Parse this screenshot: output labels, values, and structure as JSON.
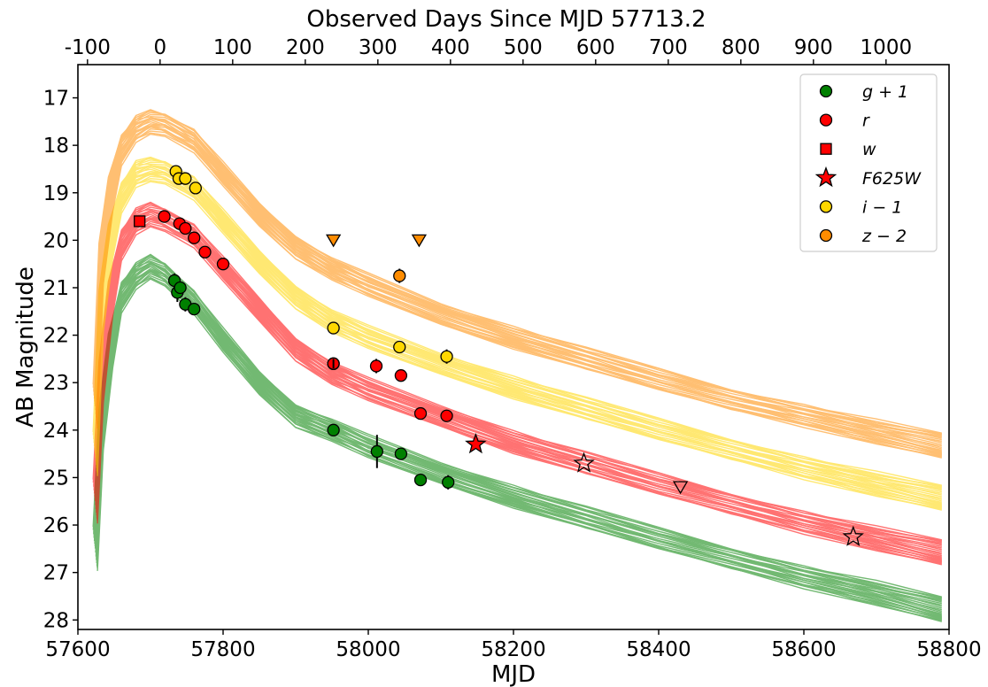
{
  "chart_data": {
    "type": "scatter",
    "title": "",
    "xlabel": "MJD",
    "ylabel": "AB Magnitude",
    "top_xlabel": "Observed Days Since MJD 57713.2",
    "x_range": [
      57600,
      58800
    ],
    "y_range": [
      28.2,
      16.3
    ],
    "y_inverted": true,
    "top_axis_offset": 57713.2,
    "x_ticks": [
      57600,
      57800,
      58000,
      58200,
      58400,
      58600,
      58800
    ],
    "x_tick_labels": [
      "57600",
      "57800",
      "58000",
      "58200",
      "58400",
      "58600",
      "58800"
    ],
    "y_ticks": [
      17,
      18,
      19,
      20,
      21,
      22,
      23,
      24,
      25,
      26,
      27,
      28
    ],
    "y_tick_labels": [
      "17",
      "18",
      "19",
      "20",
      "21",
      "22",
      "23",
      "24",
      "25",
      "26",
      "27",
      "28"
    ],
    "top_ticks": [
      -100,
      0,
      100,
      200,
      300,
      400,
      500,
      600,
      700,
      800,
      900,
      1000
    ],
    "top_tick_labels": [
      "-100",
      "0",
      "100",
      "200",
      "300",
      "400",
      "500",
      "600",
      "700",
      "800",
      "900",
      "1000"
    ],
    "grid": false,
    "legend_position": "top-right",
    "legend": [
      {
        "label": "g + 1",
        "marker": "circle",
        "color": "#008000"
      },
      {
        "label": "r",
        "marker": "circle",
        "color": "#ff0000"
      },
      {
        "label": "w",
        "marker": "square",
        "color": "#ff0000"
      },
      {
        "label": "F625W",
        "marker": "star",
        "color": "#ff0000"
      },
      {
        "label": "i − 1",
        "marker": "circle",
        "color": "#ffd700"
      },
      {
        "label": "z − 2",
        "marker": "circle",
        "color": "#ff8c00"
      }
    ],
    "model_bands": [
      {
        "name": "g + 1",
        "color": "#008000",
        "points": [
          [
            57624,
            26.5
          ],
          [
            57632,
            24.0
          ],
          [
            57645,
            22.3
          ],
          [
            57660,
            21.2
          ],
          [
            57680,
            20.75
          ],
          [
            57700,
            20.55
          ],
          [
            57720,
            20.7
          ],
          [
            57760,
            21.3
          ],
          [
            57800,
            22.1
          ],
          [
            57850,
            23.0
          ],
          [
            57900,
            23.7
          ],
          [
            57950,
            24.0
          ],
          [
            58000,
            24.35
          ],
          [
            58100,
            24.9
          ],
          [
            58200,
            25.4
          ],
          [
            58300,
            25.85
          ],
          [
            58400,
            26.3
          ],
          [
            58500,
            26.7
          ],
          [
            58600,
            27.1
          ],
          [
            58700,
            27.45
          ],
          [
            58790,
            27.8
          ]
        ],
        "width": [
          0.9,
          0.8,
          0.7,
          0.6,
          0.5,
          0.45,
          0.45,
          0.45,
          0.45,
          0.45,
          0.45,
          0.45,
          0.45,
          0.45,
          0.45,
          0.45,
          0.45,
          0.45,
          0.45,
          0.5,
          0.55
        ]
      },
      {
        "name": "r",
        "color": "#ff0000",
        "points": [
          [
            57624,
            25.5
          ],
          [
            57632,
            23.0
          ],
          [
            57645,
            21.2
          ],
          [
            57660,
            20.1
          ],
          [
            57680,
            19.6
          ],
          [
            57700,
            19.45
          ],
          [
            57720,
            19.55
          ],
          [
            57760,
            19.9
          ],
          [
            57800,
            20.6
          ],
          [
            57850,
            21.45
          ],
          [
            57900,
            22.3
          ],
          [
            57950,
            22.8
          ],
          [
            58000,
            23.15
          ],
          [
            58100,
            23.7
          ],
          [
            58200,
            24.25
          ],
          [
            58300,
            24.7
          ],
          [
            58400,
            25.15
          ],
          [
            58500,
            25.55
          ],
          [
            58600,
            25.95
          ],
          [
            58700,
            26.3
          ],
          [
            58790,
            26.6
          ]
        ],
        "width": [
          0.9,
          0.8,
          0.7,
          0.6,
          0.5,
          0.45,
          0.45,
          0.45,
          0.45,
          0.45,
          0.45,
          0.45,
          0.45,
          0.45,
          0.45,
          0.45,
          0.45,
          0.45,
          0.45,
          0.5,
          0.55
        ]
      },
      {
        "name": "i − 1",
        "color": "#ffd700",
        "points": [
          [
            57624,
            24.5
          ],
          [
            57632,
            21.5
          ],
          [
            57645,
            20.0
          ],
          [
            57660,
            19.1
          ],
          [
            57680,
            18.6
          ],
          [
            57700,
            18.5
          ],
          [
            57720,
            18.55
          ],
          [
            57760,
            18.9
          ],
          [
            57800,
            19.6
          ],
          [
            57850,
            20.45
          ],
          [
            57900,
            21.2
          ],
          [
            57950,
            21.7
          ],
          [
            58000,
            22.05
          ],
          [
            58100,
            22.6
          ],
          [
            58200,
            23.1
          ],
          [
            58300,
            23.55
          ],
          [
            58400,
            24.0
          ],
          [
            58500,
            24.4
          ],
          [
            58600,
            24.8
          ],
          [
            58700,
            25.15
          ],
          [
            58790,
            25.45
          ]
        ],
        "width": [
          0.9,
          0.8,
          0.7,
          0.6,
          0.5,
          0.45,
          0.45,
          0.45,
          0.45,
          0.45,
          0.45,
          0.45,
          0.45,
          0.45,
          0.45,
          0.45,
          0.45,
          0.45,
          0.45,
          0.5,
          0.55
        ]
      },
      {
        "name": "z − 2",
        "color": "#ff8c00",
        "points": [
          [
            57624,
            23.5
          ],
          [
            57632,
            20.5
          ],
          [
            57645,
            19.0
          ],
          [
            57660,
            18.1
          ],
          [
            57680,
            17.65
          ],
          [
            57700,
            17.5
          ],
          [
            57720,
            17.55
          ],
          [
            57760,
            17.9
          ],
          [
            57800,
            18.6
          ],
          [
            57850,
            19.45
          ],
          [
            57900,
            20.15
          ],
          [
            57950,
            20.6
          ],
          [
            58000,
            20.95
          ],
          [
            58100,
            21.55
          ],
          [
            58200,
            22.05
          ],
          [
            58300,
            22.5
          ],
          [
            58400,
            22.95
          ],
          [
            58500,
            23.35
          ],
          [
            58600,
            23.7
          ],
          [
            58700,
            24.05
          ],
          [
            58790,
            24.35
          ]
        ],
        "width": [
          0.9,
          0.8,
          0.7,
          0.6,
          0.5,
          0.45,
          0.45,
          0.45,
          0.45,
          0.45,
          0.45,
          0.45,
          0.45,
          0.45,
          0.45,
          0.45,
          0.45,
          0.45,
          0.45,
          0.5,
          0.55
        ]
      }
    ],
    "observations": [
      {
        "band": "g + 1",
        "marker": "circle",
        "color": "#008000",
        "points": [
          [
            57733,
            20.85
          ],
          [
            57737,
            21.1
          ],
          [
            57741,
            21.0
          ],
          [
            57748,
            21.35
          ],
          [
            57760,
            21.45
          ],
          [
            57952,
            24.0
          ],
          [
            58012,
            24.45
          ],
          [
            58045,
            24.5
          ],
          [
            58072,
            25.05
          ],
          [
            58110,
            25.1
          ]
        ],
        "errors": [
          0.15,
          0.2,
          0.1,
          0.15,
          0.1,
          0.1,
          0.35,
          0.1,
          0.1,
          0.15
        ]
      },
      {
        "band": "r",
        "marker": "circle",
        "color": "#ff0000",
        "points": [
          [
            57719,
            19.5
          ],
          [
            57740,
            19.65
          ],
          [
            57748,
            19.75
          ],
          [
            57760,
            19.95
          ],
          [
            57775,
            20.25
          ],
          [
            57800,
            20.5
          ],
          [
            57952,
            22.6
          ],
          [
            58011,
            22.65
          ],
          [
            58045,
            22.85
          ],
          [
            58072,
            23.65
          ],
          [
            58108,
            23.7
          ]
        ],
        "errors": [
          0.05,
          0.05,
          0.1,
          0.1,
          0.1,
          0.1,
          0.1,
          0.15,
          0.1,
          0.1,
          0.1
        ]
      },
      {
        "band": "r",
        "marker": "circle-open",
        "color": "#ff0000",
        "points": [
          [
            57952,
            22.6
          ]
        ],
        "errors": [
          0.1
        ]
      },
      {
        "band": "w",
        "marker": "square",
        "color": "#ff0000",
        "points": [
          [
            57685,
            19.6
          ]
        ],
        "errors": [
          0.05
        ]
      },
      {
        "band": "F625W",
        "marker": "star",
        "color": "#ff0000",
        "points": [
          [
            58148,
            24.3
          ]
        ],
        "errors": [
          0
        ]
      },
      {
        "band": "F625W",
        "marker": "star-open",
        "color": "#ff0000",
        "points": [
          [
            58297,
            24.7
          ],
          [
            58668,
            26.25
          ]
        ],
        "errors": [
          0,
          0
        ]
      },
      {
        "band": "i − 1",
        "marker": "circle",
        "color": "#ffd700",
        "points": [
          [
            57735,
            18.55
          ],
          [
            57739,
            18.7
          ],
          [
            57748,
            18.7
          ],
          [
            57762,
            18.9
          ],
          [
            57952,
            21.85
          ],
          [
            58043,
            22.25
          ],
          [
            58108,
            22.45
          ]
        ],
        "errors": [
          0.1,
          0.1,
          0.05,
          0.05,
          0.05,
          0.1,
          0.15
        ]
      },
      {
        "band": "z − 2",
        "marker": "circle",
        "color": "#ff8c00",
        "points": [
          [
            58043,
            20.75
          ]
        ],
        "errors": [
          0.15
        ]
      },
      {
        "band": "z − 2",
        "marker": "triangle-down",
        "color": "#ff8c00",
        "points": [
          [
            57952,
            20.0
          ],
          [
            58070,
            20.0
          ]
        ],
        "errors": [
          0,
          0
        ]
      },
      {
        "band": "r",
        "marker": "triangle-down-open",
        "color": "#ff0000",
        "points": [
          [
            58430,
            25.2
          ]
        ],
        "errors": [
          0
        ]
      }
    ]
  }
}
